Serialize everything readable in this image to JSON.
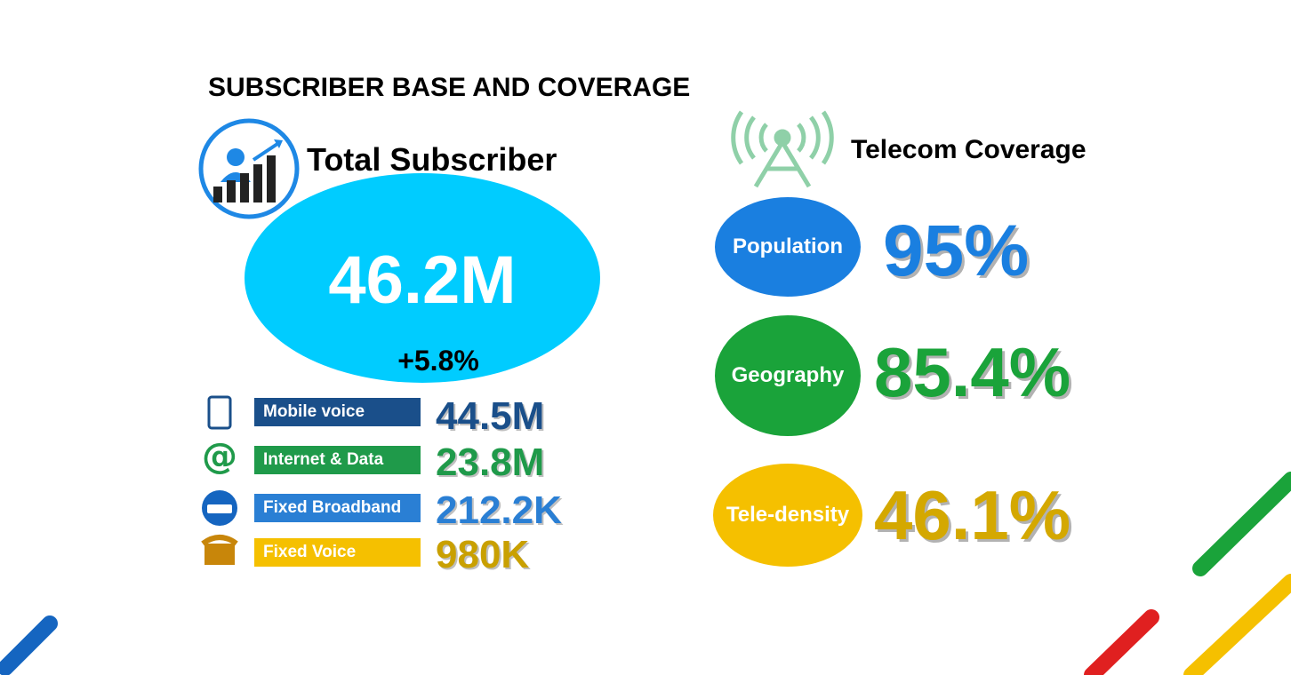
{
  "title": "SUBSCRIBER BASE AND COVERAGE",
  "subscribers": {
    "heading": "Total Subscriber",
    "total": "46.2M",
    "growth": "+5.8%",
    "rows": [
      {
        "label": "Mobile voice",
        "value": "44.5M"
      },
      {
        "label": "Internet & Data",
        "value": "23.8M"
      },
      {
        "label": "Fixed Broadband",
        "value": "212.2K"
      },
      {
        "label": "Fixed Voice",
        "value": "980K"
      }
    ]
  },
  "coverage": {
    "heading": "Telecom Coverage",
    "items": [
      {
        "label": "Population",
        "value": "95%"
      },
      {
        "label": "Geography",
        "value": "85.4%"
      },
      {
        "label": "Tele-density",
        "value": "46.1%"
      }
    ]
  }
}
